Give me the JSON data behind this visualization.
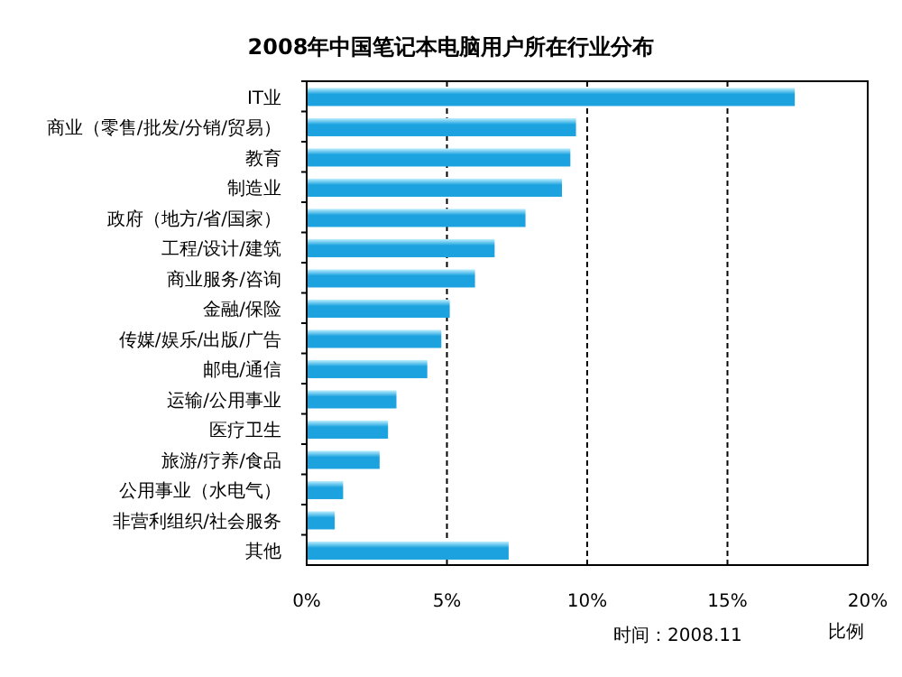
{
  "chart_data": {
    "type": "bar",
    "orientation": "horizontal",
    "title": "2008年中国笔记本电脑用户所在行业分布",
    "categories": [
      "IT业",
      "商业（零售/批发/分销/贸易）",
      "教育",
      "制造业",
      "政府（地方/省/国家）",
      "工程/设计/建筑",
      "商业服务/咨询",
      "金融/保险",
      "传媒/娱乐/出版/广告",
      "邮电/通信",
      "运输/公用事业",
      "医疗卫生",
      "旅游/疗养/食品",
      "公用事业（水电气）",
      "非营利组织/社会服务",
      "其他"
    ],
    "values": [
      17.4,
      9.6,
      9.4,
      9.1,
      7.8,
      6.7,
      6.0,
      5.1,
      4.8,
      4.3,
      3.2,
      2.9,
      2.6,
      1.3,
      1.0,
      7.2
    ],
    "color": "#1ca3df",
    "xlim": [
      0,
      20
    ],
    "xticks": [
      {
        "value": 0,
        "label": "0%"
      },
      {
        "value": 5,
        "label": "5%"
      },
      {
        "value": 10,
        "label": "10%"
      },
      {
        "value": 15,
        "label": "15%"
      },
      {
        "value": 20,
        "label": "20%"
      }
    ],
    "xlabel": "比例",
    "grid": "x",
    "annotations": [
      "时间：2008.11"
    ]
  }
}
